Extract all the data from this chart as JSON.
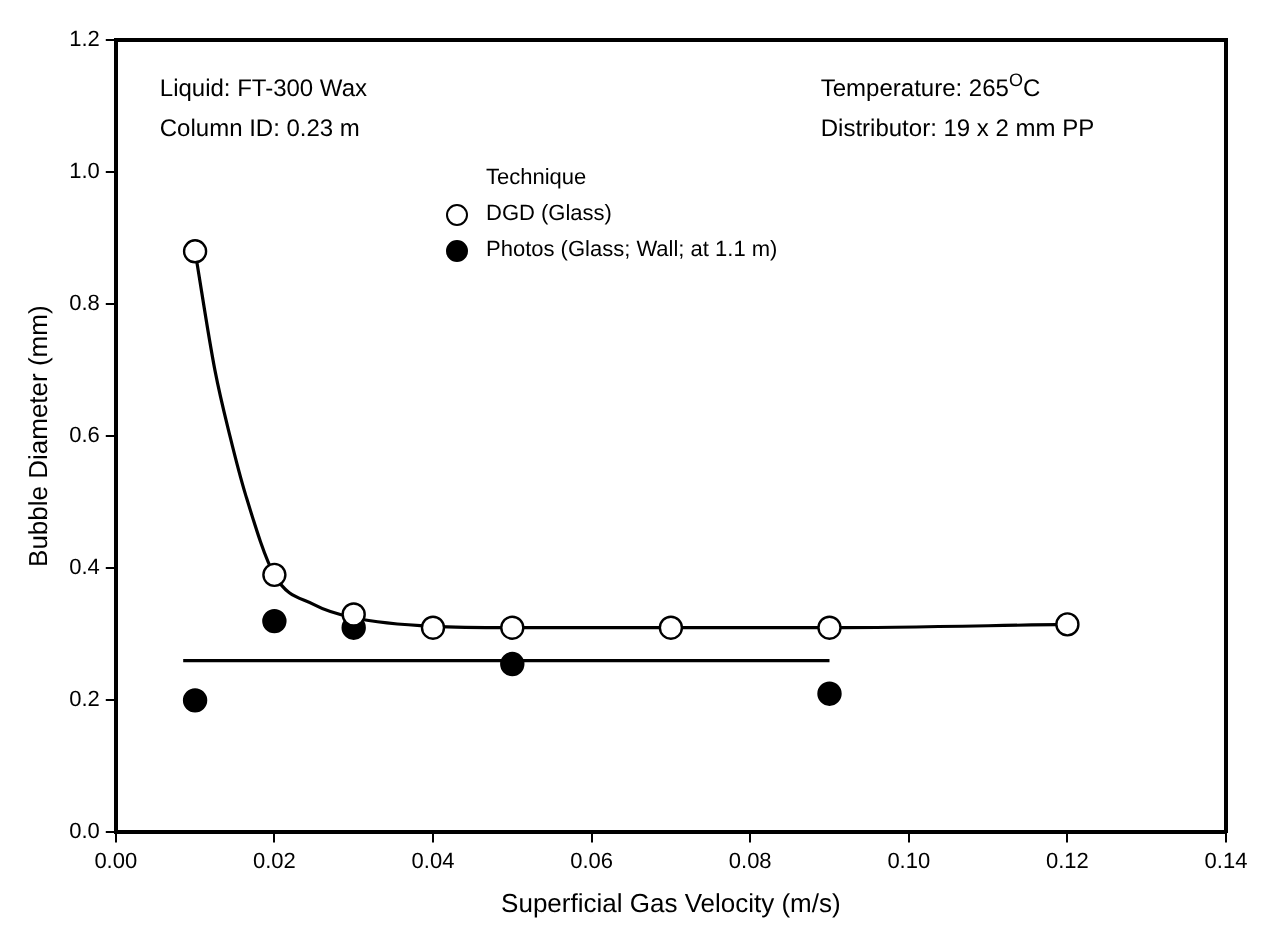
{
  "chart_data": {
    "type": "scatter",
    "xlabel": "Superficial Gas Velocity (m/s)",
    "ylabel": "Bubble Diameter (mm)",
    "xlim": [
      0,
      0.14
    ],
    "xticks": [
      {
        "value": 0,
        "label": "0.00"
      },
      {
        "value": 0.02,
        "label": "0.02"
      },
      {
        "value": 0.04,
        "label": "0.04"
      },
      {
        "value": 0.06,
        "label": "0.06"
      },
      {
        "value": 0.08,
        "label": "0.08"
      },
      {
        "value": 0.1,
        "label": "0.10"
      },
      {
        "value": 0.12,
        "label": "0.12"
      },
      {
        "value": 0.14,
        "label": "0.14"
      }
    ],
    "ylim": [
      0,
      1.2
    ],
    "yticks": [
      {
        "value": 0,
        "label": "0.0"
      },
      0.2,
      0.4,
      0.6,
      0.8,
      {
        "value": 1,
        "label": "1.0"
      },
      1.2
    ],
    "grid": false,
    "legend": "top",
    "legend_title": "Technique",
    "marker": "circle",
    "annotations": [
      "Liquid: FT-300 Wax",
      "Column ID: 0.23 m",
      "Temperature: 265$^{O}$C",
      "Distributor: 19 x 2 mm PP"
    ],
    "series": [
      {
        "name": "DGD (Glass)",
        "color": "#000000",
        "x": [
          0.01,
          0.02,
          0.03,
          0.04,
          0.05,
          0.07,
          0.09,
          0.12
        ],
        "values": [
          0.88,
          0.39,
          0.33,
          0.31,
          0.31,
          0.31,
          0.31,
          0.315
        ]
      },
      {
        "name": "Photos (Glass; Wall; at 1.1 m)",
        "color": "#000000",
        "x": [
          0.01,
          0.02,
          0.03,
          0.05,
          0.09
        ],
        "values": [
          0.2,
          0.32,
          0.31,
          0.255,
          0.21
        ]
      },
      {
        "type": "line",
        "color": "#000000",
        "marker": "none",
        "x": [
          0.01,
          0.0125,
          0.0144,
          0.0164,
          0.02,
          0.025,
          0.03,
          0.04,
          0.05,
          0.09,
          0.12
        ],
        "values": [
          0.88,
          0.7,
          0.6,
          0.51,
          0.39,
          0.345,
          0.325,
          0.312,
          0.31,
          0.31,
          0.315
        ]
      },
      {
        "type": "line",
        "color": "#000000",
        "marker": "none",
        "x": [
          0.0085,
          0.09
        ],
        "values": [
          0.26,
          0.26
        ]
      }
    ]
  }
}
